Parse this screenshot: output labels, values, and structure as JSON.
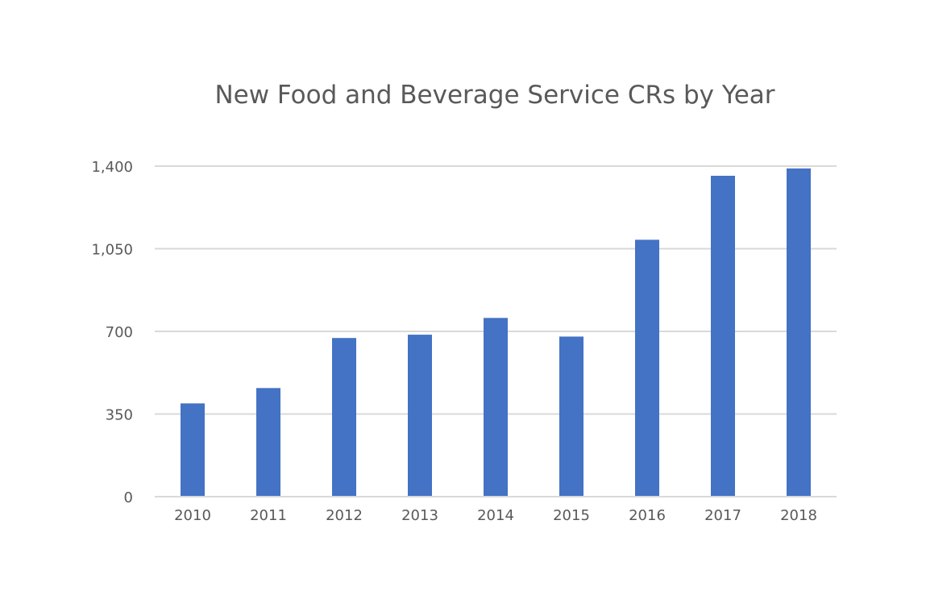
{
  "chart_data": {
    "type": "bar",
    "title": "New Food and Beverage Service CRs by Year",
    "categories": [
      "2010",
      "2011",
      "2012",
      "2013",
      "2014",
      "2015",
      "2016",
      "2017",
      "2018"
    ],
    "values": [
      395,
      460,
      672,
      686,
      757,
      678,
      1088,
      1359,
      1390
    ],
    "ylim": [
      0,
      1400
    ],
    "yticks": [
      0,
      350,
      700,
      1050,
      1400
    ],
    "ytick_labels": [
      "0",
      "350",
      "700",
      "1,050",
      "1,400"
    ],
    "grid": true,
    "bar_color": "#4472C4",
    "grid_color": "#D9D9D9",
    "text_color": "#595959"
  }
}
